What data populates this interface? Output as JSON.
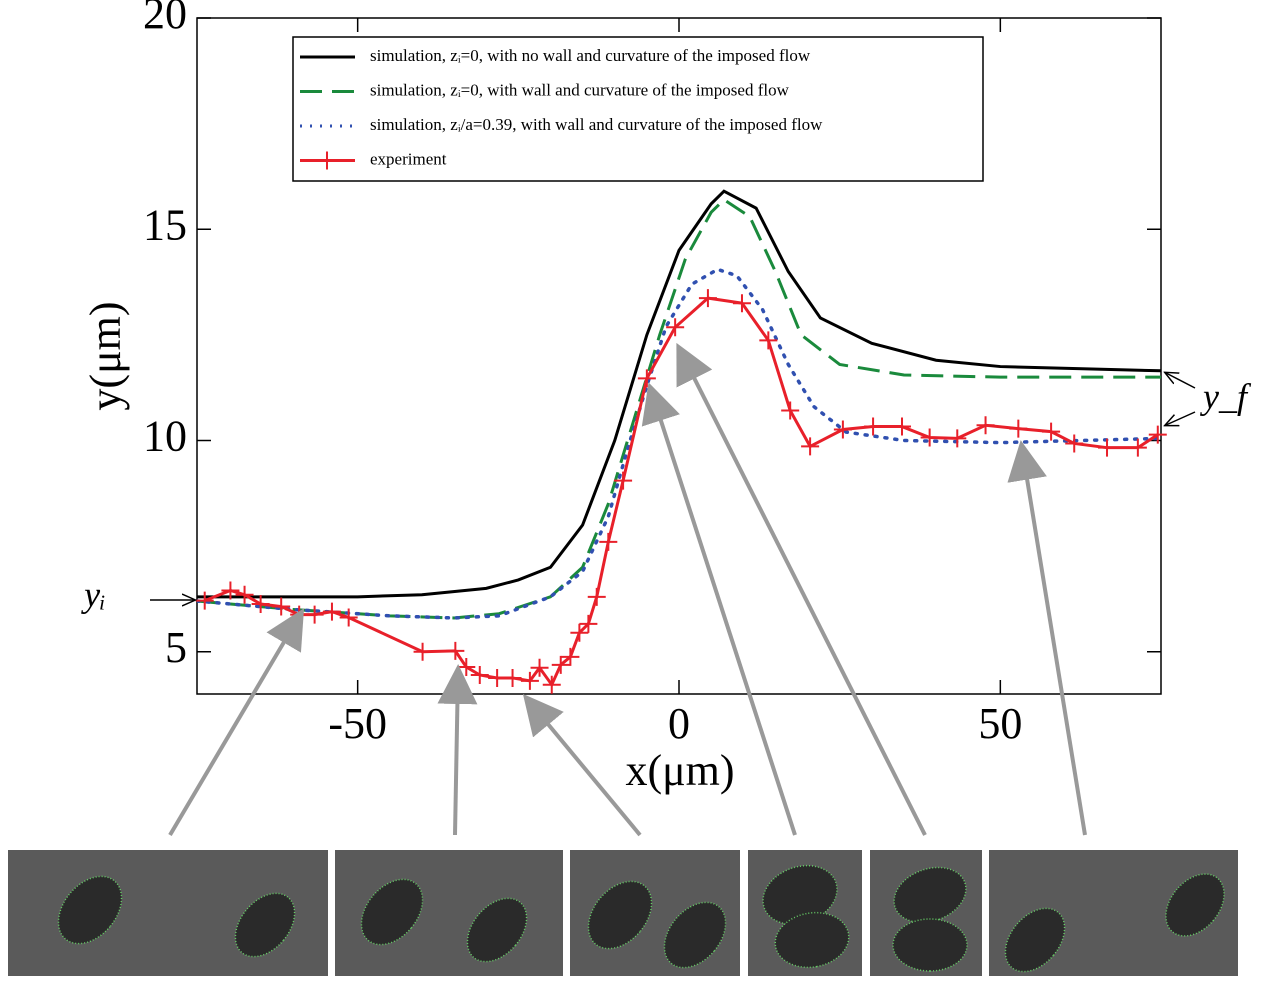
{
  "chart_data": {
    "type": "line",
    "xlabel": "x(μm)",
    "ylabel": "y(μm)",
    "xlim": [
      -75,
      75
    ],
    "ylim": [
      4,
      20
    ],
    "xticks": [
      -50,
      0,
      50
    ],
    "yticks": [
      5,
      10,
      15,
      20
    ],
    "annotations": [
      "yᵢ",
      "y_f"
    ],
    "series": [
      {
        "name": "simulation, zᵢ=0, with no wall and curvature of the imposed flow",
        "color": "#000000",
        "style": "solid",
        "x": [
          -75,
          -60,
          -50,
          -40,
          -30,
          -25,
          -20,
          -15,
          -10,
          -5,
          0,
          5,
          7,
          12,
          17,
          22,
          30,
          40,
          50,
          75
        ],
        "values": [
          6.3,
          6.3,
          6.3,
          6.35,
          6.5,
          6.7,
          7.0,
          8.0,
          10.0,
          12.5,
          14.5,
          15.6,
          15.9,
          15.5,
          14.0,
          12.9,
          12.3,
          11.9,
          11.75,
          11.65
        ]
      },
      {
        "name": "simulation, zᵢ=0, with wall and curvature of the imposed flow",
        "color": "#1a8a3c",
        "style": "dashed",
        "x": [
          -75,
          -60,
          -45,
          -35,
          -28,
          -20,
          -15,
          -11,
          -7,
          -3,
          1,
          5,
          7,
          11,
          15,
          19,
          25,
          35,
          50,
          75
        ],
        "values": [
          6.2,
          6.0,
          5.85,
          5.8,
          5.9,
          6.3,
          7.0,
          8.5,
          10.5,
          12.5,
          14.3,
          15.4,
          15.7,
          15.3,
          14.0,
          12.5,
          11.8,
          11.55,
          11.5,
          11.5
        ]
      },
      {
        "name": "simulation, zᵢ/a=0.39, with wall and curvature of the imposed flow",
        "color": "#3050b0",
        "style": "dotted",
        "x": [
          -75,
          -60,
          -45,
          -35,
          -28,
          -20,
          -15,
          -11,
          -8,
          -5,
          -2,
          2,
          6,
          9,
          13,
          17,
          21,
          26,
          35,
          50,
          75
        ],
        "values": [
          6.2,
          6.0,
          5.85,
          5.8,
          5.85,
          6.3,
          6.9,
          8.2,
          9.8,
          11.3,
          12.7,
          13.7,
          14.05,
          13.9,
          13.1,
          11.8,
          10.8,
          10.2,
          10.0,
          9.95,
          10.05
        ]
      },
      {
        "name": "experiment",
        "color": "#e8202a",
        "style": "solid",
        "marker": "plus",
        "x": [
          -73.8,
          -69.8,
          -67.6,
          -65.1,
          -61.9,
          -59.1,
          -56.7,
          -54.0,
          -51.4,
          -39.9,
          -34.8,
          -33.1,
          -31.0,
          -28.3,
          -25.9,
          -23.2,
          -21.7,
          -19.8,
          -18.4,
          -16.9,
          -15.5,
          -14.1,
          -12.8,
          -11.0,
          -8.7,
          -5.0,
          -0.6,
          4.5,
          9.8,
          13.9,
          17.3,
          20.4,
          25.5,
          30.2,
          34.7,
          39.0,
          43.3,
          47.7,
          52.8,
          57.9,
          61.5,
          66.6,
          71.4,
          74.5
        ],
        "values": [
          6.21,
          6.45,
          6.35,
          6.13,
          6.07,
          5.88,
          5.88,
          5.95,
          5.81,
          5.0,
          5.02,
          4.64,
          4.45,
          4.38,
          4.38,
          4.31,
          4.62,
          4.22,
          4.69,
          4.88,
          5.45,
          5.66,
          6.3,
          7.6,
          9.05,
          11.47,
          12.68,
          13.37,
          13.25,
          12.37,
          10.71,
          9.86,
          10.26,
          10.33,
          10.33,
          10.07,
          10.05,
          10.36,
          10.28,
          10.21,
          9.93,
          9.83,
          9.83,
          10.14
        ]
      }
    ]
  }
}
